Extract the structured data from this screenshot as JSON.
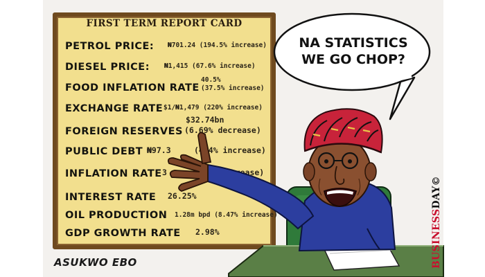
{
  "card": {
    "title": "FIRST TERM REPORT CARD",
    "rows": [
      {
        "label": "PETROL PRICE:",
        "value": "₦701.24 (194.5% increase)"
      },
      {
        "label": "DIESEL PRICE:",
        "value": "₦1,415 (67.6% increase)"
      },
      {
        "label": "FOOD INFLATION RATE",
        "value": "40.5%",
        "value2": "(37.5% increase)"
      },
      {
        "label": "EXCHANGE RATE",
        "value": "$1/₦1,479 (220% increase)"
      },
      {
        "label": "FOREIGN RESERVES",
        "value": "$32.74bn",
        "value2": "(6.69% decrease)"
      },
      {
        "label": "PUBLIC DEBT",
        "value": "₦97.3",
        "value2": "(4.4% increase)"
      },
      {
        "label": "INFLATION RATE",
        "value": "3",
        "value2": "(increase)"
      },
      {
        "label": "INTEREST RATE",
        "value": "26.25%"
      },
      {
        "label": "OIL PRODUCTION",
        "value": "1.28m bpd (8.47% increase)"
      },
      {
        "label": "GDP GROWTH RATE",
        "value": "2.98%"
      }
    ]
  },
  "bubble": {
    "line1": "NA STATISTICS",
    "line2": "WE GO CHOP?"
  },
  "signature": "ASUKWO EBO",
  "logo": {
    "part1": "BUSINESS",
    "part2": "DAY©"
  },
  "colors": {
    "board": "#f2df8e",
    "frame": "#6f4a1f",
    "cap": "#c8233a",
    "shirt": "#2c3e9f",
    "chair": "#2f7a3a",
    "skin": "#8a5030"
  }
}
